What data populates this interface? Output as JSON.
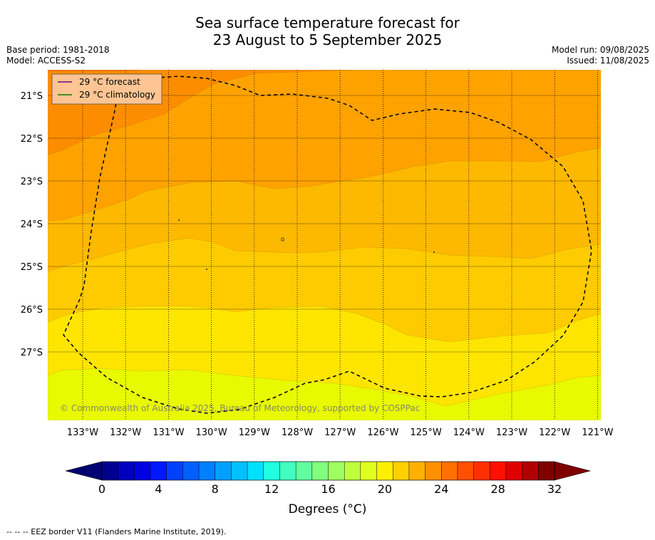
{
  "header": {
    "title_line1": "Sea surface temperature forecast for",
    "title_line2": "23 August to 5 September 2025",
    "base_period": "Base period: 1981-2018",
    "model": "Model: ACCESS-S2",
    "model_run": "Model run: 09/08/2025",
    "issued": "Issued: 11/08/2025"
  },
  "map": {
    "lat_labels": [
      "21°S",
      "22°S",
      "23°S",
      "24°S",
      "25°S",
      "26°S",
      "27°S"
    ],
    "lon_labels": [
      "133°W",
      "132°W",
      "131°W",
      "130°W",
      "129°W",
      "128°W",
      "127°W",
      "126°W",
      "125°W",
      "124°W",
      "123°W",
      "122°W",
      "121°W"
    ],
    "copyright": "© Commonwealth of Australia 2025, Bureau of Meteorology, supported by COSPPac",
    "legend": {
      "forecast_label": "29 °C  forecast",
      "climatology_label": "29 °C  climatology",
      "forecast_color": "#800080",
      "climatology_color": "#008000"
    },
    "band_colors": [
      "#f97800",
      "#fd8d00",
      "#fea200",
      "#fdb800",
      "#fdcb00",
      "#fde500",
      "#e8f900"
    ],
    "eez_border": "dashed black"
  },
  "colorbar": {
    "tick_labels": [
      "0",
      "4",
      "8",
      "12",
      "16",
      "20",
      "24",
      "28",
      "32"
    ],
    "title": "Degrees (°C)",
    "colors": [
      "#00008f",
      "#0000c0",
      "#0000e0",
      "#0018ff",
      "#0040ff",
      "#0060ff",
      "#0080ff",
      "#00a0ff",
      "#00c0ff",
      "#00e0ff",
      "#20ffe0",
      "#40ffc0",
      "#60ffa0",
      "#80ff80",
      "#a0ff60",
      "#c0ff40",
      "#e0ff20",
      "#fff000",
      "#ffd000",
      "#ffb000",
      "#ff9000",
      "#ff7000",
      "#ff5000",
      "#ff3000",
      "#ff1000",
      "#e00000",
      "#b00000",
      "#800000"
    ],
    "under_color": "#000070",
    "over_color": "#800000"
  },
  "footer": {
    "eez_note": "--  --  -- EEZ border V11 (Flanders Marine Institute, 2019)."
  }
}
